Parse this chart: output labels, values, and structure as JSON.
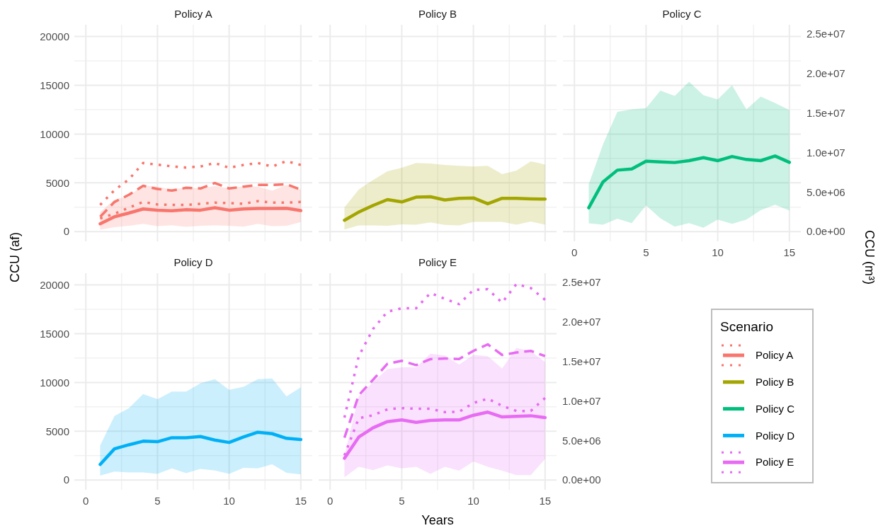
{
  "chart_data": [
    {
      "type": "line",
      "title": "Policy A",
      "ylabel": "CCU (af)",
      "x": [
        1,
        2,
        3,
        4,
        5,
        6,
        7,
        8,
        9,
        10,
        11,
        12,
        13,
        14,
        15
      ],
      "xlim": [
        -0.8,
        15.8
      ],
      "xticks": [
        0,
        5,
        10,
        15
      ],
      "ylim": [
        -1000,
        21200
      ],
      "yticks": [
        0,
        5000,
        10000,
        15000,
        20000
      ],
      "grid": true,
      "tick_labels": "y",
      "series": [
        {
          "name": "Policy A",
          "color": "#f8766d",
          "line_style": "solid",
          "values": [
            800,
            1520,
            1900,
            2320,
            2200,
            2130,
            2250,
            2200,
            2440,
            2200,
            2320,
            2370,
            2370,
            2390,
            2150
          ],
          "lower": [
            190,
            460,
            600,
            800,
            560,
            650,
            480,
            600,
            650,
            600,
            510,
            800,
            560,
            600,
            970
          ],
          "upper": [
            2000,
            3280,
            3650,
            4730,
            4610,
            4320,
            4490,
            4440,
            4660,
            4420,
            4660,
            4610,
            4180,
            4780,
            4300
          ]
        },
        {
          "color": "#f8766d",
          "line_style": "dotted",
          "values": [
            1350,
            1830,
            2440,
            3040,
            2780,
            2730,
            2730,
            2850,
            2970,
            2920,
            2850,
            3120,
            2970,
            2970,
            3040
          ]
        },
        {
          "color": "#f8766d",
          "line_style": "dashed",
          "values": [
            1520,
            3040,
            3770,
            4690,
            4370,
            4200,
            4490,
            4420,
            4980,
            4420,
            4610,
            4780,
            4780,
            4850,
            4300
          ]
        },
        {
          "color": "#f8766d",
          "line_style": "dotted",
          "values": [
            2730,
            4250,
            5340,
            7030,
            6860,
            6690,
            6570,
            6670,
            7030,
            6540,
            6830,
            7030,
            6670,
            7220,
            6830
          ]
        }
      ]
    },
    {
      "type": "line",
      "title": "Policy B",
      "x": [
        1,
        2,
        3,
        4,
        5,
        6,
        7,
        8,
        9,
        10,
        11,
        12,
        13,
        14,
        15
      ],
      "xlim": [
        -0.8,
        15.8
      ],
      "xticks": [
        0,
        5,
        10,
        15
      ],
      "ylim": [
        -1000,
        21200
      ],
      "yticks": [
        0,
        5000,
        10000,
        15000,
        20000
      ],
      "grid": true,
      "tick_labels": false,
      "series": [
        {
          "name": "Policy B",
          "color": "#a3a500",
          "line_style": "solid",
          "values": [
            1160,
            2000,
            2680,
            3280,
            3040,
            3530,
            3570,
            3240,
            3410,
            3450,
            2850,
            3410,
            3410,
            3360,
            3330
          ],
          "lower": [
            220,
            630,
            630,
            600,
            750,
            700,
            940,
            680,
            630,
            990,
            990,
            990,
            700,
            1040,
            700
          ],
          "upper": [
            2490,
            4320,
            5290,
            6180,
            6540,
            7030,
            6980,
            6830,
            6740,
            6670,
            6740,
            5890,
            6250,
            7200,
            6880
          ]
        }
      ]
    },
    {
      "type": "line",
      "title": "Policy C",
      "y2label": "CCU (m³)",
      "x": [
        1,
        2,
        3,
        4,
        5,
        6,
        7,
        8,
        9,
        10,
        11,
        12,
        13,
        14,
        15
      ],
      "xlim": [
        -0.8,
        15.8
      ],
      "xticks": [
        0,
        5,
        10,
        15
      ],
      "ylim": [
        -1000,
        21200
      ],
      "yticks": [
        0,
        5000,
        10000,
        15000,
        20000
      ],
      "y2lim": [
        -1233000,
        26150000
      ],
      "y2ticks": [
        {
          "value": 0,
          "label": "0.0e+00"
        },
        {
          "value": 5000000,
          "label": "5.0e+06"
        },
        {
          "value": 10000000,
          "label": "1.0e+07"
        },
        {
          "value": 15000000,
          "label": "1.5e+07"
        },
        {
          "value": 20000000,
          "label": "2.0e+07"
        },
        {
          "value": 25000000,
          "label": "2.5e+07"
        }
      ],
      "grid": true,
      "tick_labels": "x",
      "series": [
        {
          "name": "Policy C",
          "color": "#00bf7d",
          "line_style": "solid",
          "values": [
            2440,
            5100,
            6300,
            6420,
            7220,
            7150,
            7080,
            7270,
            7580,
            7270,
            7700,
            7390,
            7270,
            7750,
            7100
          ],
          "lower": [
            850,
            700,
            1330,
            870,
            2680,
            1350,
            510,
            870,
            390,
            1230,
            800,
            1230,
            2200,
            2750,
            2150
          ],
          "upper": [
            4850,
            8960,
            12270,
            12530,
            12650,
            14460,
            13910,
            15360,
            13980,
            13550,
            15000,
            12530,
            13840,
            13190,
            12460
          ]
        }
      ]
    },
    {
      "type": "line",
      "title": "Policy D",
      "x": [
        1,
        2,
        3,
        4,
        5,
        6,
        7,
        8,
        9,
        10,
        11,
        12,
        13,
        14,
        15
      ],
      "xlim": [
        -0.8,
        15.8
      ],
      "xticks": [
        0,
        5,
        10,
        15
      ],
      "ylim": [
        -1000,
        21200
      ],
      "yticks": [
        0,
        5000,
        10000,
        15000,
        20000
      ],
      "grid": true,
      "series": [
        {
          "name": "Policy D",
          "color": "#00b0f6",
          "line_style": "solid",
          "values": [
            1600,
            3200,
            3610,
            3980,
            3930,
            4340,
            4340,
            4460,
            4100,
            3850,
            4410,
            4900,
            4750,
            4270,
            4150
          ],
          "lower": [
            460,
            870,
            780,
            780,
            630,
            1190,
            700,
            1140,
            970,
            630,
            1240,
            1190,
            1620,
            750,
            580
          ],
          "upper": [
            3540,
            6570,
            7370,
            8820,
            8290,
            9070,
            9070,
            9910,
            10330,
            9240,
            9550,
            10330,
            10400,
            8580,
            9500
          ]
        }
      ]
    },
    {
      "type": "line",
      "title": "Policy E",
      "xlabel": "Years",
      "legend_title": "Scenario",
      "legend": "right",
      "x": [
        1,
        2,
        3,
        4,
        5,
        6,
        7,
        8,
        9,
        10,
        11,
        12,
        13,
        14,
        15
      ],
      "xlim": [
        -0.8,
        15.8
      ],
      "xticks": [
        0,
        5,
        10,
        15
      ],
      "ylim": [
        -1000,
        21200
      ],
      "yticks": [
        0,
        5000,
        10000,
        15000,
        20000
      ],
      "y2lim": [
        -1233000,
        26150000
      ],
      "y2ticks": [
        {
          "value": 0,
          "label": "0.0e+00"
        },
        {
          "value": 5000000,
          "label": "5.0e+06"
        },
        {
          "value": 10000000,
          "label": "1.0e+07"
        },
        {
          "value": 15000000,
          "label": "1.5e+07"
        },
        {
          "value": 20000000,
          "label": "2.0e+07"
        },
        {
          "value": 25000000,
          "label": "2.5e+07"
        }
      ],
      "grid": true,
      "tick_labels": "x",
      "series": [
        {
          "name": "Policy E",
          "color": "#e76bf3",
          "line_style": "solid",
          "values": [
            2230,
            4410,
            5360,
            5990,
            6160,
            5910,
            6110,
            6160,
            6160,
            6640,
            6960,
            6470,
            6520,
            6590,
            6400
          ],
          "lower": [
            290,
            1360,
            1020,
            1500,
            1190,
            1360,
            630,
            1360,
            950,
            1910,
            1360,
            950,
            510,
            510,
            2160
          ],
          "upper": [
            2520,
            8580,
            10040,
            11370,
            11560,
            11560,
            12940,
            12770,
            11850,
            12820,
            12700,
            11420,
            13550,
            13190,
            12100
          ]
        },
        {
          "color": "#e76bf3",
          "line_style": "dotted",
          "values": [
            2520,
            6330,
            6640,
            7250,
            7370,
            7300,
            7300,
            6960,
            7000,
            7900,
            8340,
            7610,
            7080,
            7080,
            8410
          ]
        },
        {
          "color": "#e76bf3",
          "line_style": "dashed",
          "values": [
            4340,
            8700,
            10280,
            11920,
            12220,
            11780,
            12390,
            12460,
            12410,
            13240,
            13910,
            12820,
            13070,
            13240,
            12700
          ]
        },
        {
          "color": "#e76bf3",
          "line_style": "dotted",
          "values": [
            6400,
            12700,
            15490,
            17260,
            17600,
            17600,
            19170,
            18570,
            18030,
            19490,
            19560,
            18180,
            20090,
            19680,
            18470
          ]
        }
      ]
    }
  ]
}
